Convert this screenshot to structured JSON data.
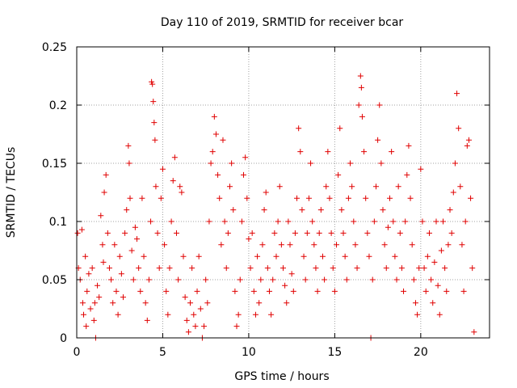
{
  "chart_data": {
    "type": "scatter",
    "title": "Day 110 of 2019, SRMTID for receiver bcar",
    "xlabel": "GPS time / hours",
    "ylabel": "SRMTID / TECUs",
    "xlim": [
      0,
      24
    ],
    "ylim": [
      0,
      0.25
    ],
    "xticks": [
      0,
      5,
      10,
      15,
      20
    ],
    "xtick_labels": [
      "0",
      "5",
      "10",
      "15",
      "20"
    ],
    "yticks": [
      0,
      0.05,
      0.1,
      0.15,
      0.2,
      0.25
    ],
    "ytick_labels": [
      "0",
      "0.05",
      "0.1",
      "0.15",
      "0.2",
      "0.25"
    ],
    "grid": true,
    "marker": "+",
    "color": "#e00000",
    "series": [
      {
        "name": "SRMTID",
        "points": [
          [
            0.05,
            0.09
          ],
          [
            0.1,
            0.06
          ],
          [
            0.2,
            0.05
          ],
          [
            0.3,
            0.093
          ],
          [
            0.35,
            0.03
          ],
          [
            0.4,
            0.02
          ],
          [
            0.5,
            0.07
          ],
          [
            0.55,
            0.01
          ],
          [
            0.6,
            0.04
          ],
          [
            0.7,
            0.055
          ],
          [
            0.8,
            0.025
          ],
          [
            0.9,
            0.06
          ],
          [
            1.0,
            0.015
          ],
          [
            1.05,
            0.03
          ],
          [
            1.1,
            0.0
          ],
          [
            1.2,
            0.045
          ],
          [
            1.3,
            0.035
          ],
          [
            1.4,
            0.105
          ],
          [
            1.5,
            0.08
          ],
          [
            1.55,
            0.065
          ],
          [
            1.6,
            0.125
          ],
          [
            1.7,
            0.14
          ],
          [
            1.8,
            0.09
          ],
          [
            1.9,
            0.06
          ],
          [
            2.0,
            0.05
          ],
          [
            2.1,
            0.03
          ],
          [
            2.2,
            0.08
          ],
          [
            2.3,
            0.04
          ],
          [
            2.4,
            0.02
          ],
          [
            2.5,
            0.07
          ],
          [
            2.6,
            0.055
          ],
          [
            2.7,
            0.035
          ],
          [
            2.8,
            0.09
          ],
          [
            2.9,
            0.11
          ],
          [
            3.0,
            0.165
          ],
          [
            3.05,
            0.15
          ],
          [
            3.1,
            0.12
          ],
          [
            3.2,
            0.075
          ],
          [
            3.3,
            0.05
          ],
          [
            3.4,
            0.095
          ],
          [
            3.5,
            0.085
          ],
          [
            3.6,
            0.06
          ],
          [
            3.7,
            0.04
          ],
          [
            3.8,
            0.12
          ],
          [
            3.9,
            0.07
          ],
          [
            4.0,
            0.03
          ],
          [
            4.1,
            0.015
          ],
          [
            4.2,
            0.05
          ],
          [
            4.3,
            0.1
          ],
          [
            4.35,
            0.22
          ],
          [
            4.4,
            0.218
          ],
          [
            4.45,
            0.203
          ],
          [
            4.5,
            0.185
          ],
          [
            4.55,
            0.17
          ],
          [
            4.6,
            0.13
          ],
          [
            4.7,
            0.09
          ],
          [
            4.8,
            0.06
          ],
          [
            4.9,
            0.12
          ],
          [
            5.0,
            0.145
          ],
          [
            5.1,
            0.08
          ],
          [
            5.2,
            0.04
          ],
          [
            5.3,
            0.02
          ],
          [
            5.4,
            0.06
          ],
          [
            5.5,
            0.1
          ],
          [
            5.6,
            0.135
          ],
          [
            5.7,
            0.155
          ],
          [
            5.8,
            0.09
          ],
          [
            5.9,
            0.05
          ],
          [
            6.0,
            0.13
          ],
          [
            6.1,
            0.125
          ],
          [
            6.2,
            0.07
          ],
          [
            6.3,
            0.035
          ],
          [
            6.4,
            0.015
          ],
          [
            6.5,
            0.005
          ],
          [
            6.6,
            0.03
          ],
          [
            6.7,
            0.06
          ],
          [
            6.8,
            0.02
          ],
          [
            6.9,
            0.01
          ],
          [
            7.0,
            0.04
          ],
          [
            7.1,
            0.07
          ],
          [
            7.2,
            0.025
          ],
          [
            7.3,
            0.0
          ],
          [
            7.4,
            0.01
          ],
          [
            7.5,
            0.05
          ],
          [
            7.6,
            0.03
          ],
          [
            7.7,
            0.1
          ],
          [
            7.8,
            0.15
          ],
          [
            7.9,
            0.16
          ],
          [
            8.0,
            0.19
          ],
          [
            8.1,
            0.175
          ],
          [
            8.2,
            0.14
          ],
          [
            8.3,
            0.12
          ],
          [
            8.4,
            0.08
          ],
          [
            8.5,
            0.17
          ],
          [
            8.6,
            0.1
          ],
          [
            8.7,
            0.06
          ],
          [
            8.8,
            0.09
          ],
          [
            8.9,
            0.13
          ],
          [
            9.0,
            0.15
          ],
          [
            9.1,
            0.11
          ],
          [
            9.2,
            0.04
          ],
          [
            9.3,
            0.01
          ],
          [
            9.4,
            0.02
          ],
          [
            9.5,
            0.05
          ],
          [
            9.6,
            0.1
          ],
          [
            9.7,
            0.14
          ],
          [
            9.8,
            0.155
          ],
          [
            9.9,
            0.12
          ],
          [
            10.0,
            0.085
          ],
          [
            10.1,
            0.06
          ],
          [
            10.2,
            0.09
          ],
          [
            10.3,
            0.04
          ],
          [
            10.4,
            0.02
          ],
          [
            10.5,
            0.07
          ],
          [
            10.6,
            0.03
          ],
          [
            10.7,
            0.05
          ],
          [
            10.8,
            0.08
          ],
          [
            10.9,
            0.11
          ],
          [
            11.0,
            0.125
          ],
          [
            11.1,
            0.06
          ],
          [
            11.2,
            0.04
          ],
          [
            11.3,
            0.02
          ],
          [
            11.4,
            0.05
          ],
          [
            11.5,
            0.09
          ],
          [
            11.6,
            0.07
          ],
          [
            11.7,
            0.1
          ],
          [
            11.8,
            0.13
          ],
          [
            11.9,
            0.08
          ],
          [
            12.0,
            0.06
          ],
          [
            12.1,
            0.045
          ],
          [
            12.2,
            0.03
          ],
          [
            12.3,
            0.1
          ],
          [
            12.4,
            0.08
          ],
          [
            12.5,
            0.055
          ],
          [
            12.6,
            0.04
          ],
          [
            12.7,
            0.09
          ],
          [
            12.8,
            0.12
          ],
          [
            12.9,
            0.18
          ],
          [
            13.0,
            0.16
          ],
          [
            13.1,
            0.11
          ],
          [
            13.2,
            0.07
          ],
          [
            13.3,
            0.05
          ],
          [
            13.4,
            0.09
          ],
          [
            13.5,
            0.12
          ],
          [
            13.6,
            0.15
          ],
          [
            13.7,
            0.1
          ],
          [
            13.8,
            0.08
          ],
          [
            13.9,
            0.06
          ],
          [
            14.0,
            0.04
          ],
          [
            14.1,
            0.09
          ],
          [
            14.2,
            0.11
          ],
          [
            14.3,
            0.07
          ],
          [
            14.4,
            0.05
          ],
          [
            14.5,
            0.13
          ],
          [
            14.6,
            0.16
          ],
          [
            14.7,
            0.12
          ],
          [
            14.8,
            0.09
          ],
          [
            14.9,
            0.06
          ],
          [
            15.0,
            0.04
          ],
          [
            15.1,
            0.08
          ],
          [
            15.2,
            0.14
          ],
          [
            15.3,
            0.18
          ],
          [
            15.4,
            0.11
          ],
          [
            15.5,
            0.09
          ],
          [
            15.6,
            0.07
          ],
          [
            15.7,
            0.05
          ],
          [
            15.8,
            0.12
          ],
          [
            15.9,
            0.15
          ],
          [
            16.0,
            0.13
          ],
          [
            16.1,
            0.1
          ],
          [
            16.2,
            0.08
          ],
          [
            16.3,
            0.06
          ],
          [
            16.4,
            0.2
          ],
          [
            16.5,
            0.225
          ],
          [
            16.55,
            0.215
          ],
          [
            16.6,
            0.19
          ],
          [
            16.7,
            0.16
          ],
          [
            16.8,
            0.12
          ],
          [
            16.9,
            0.09
          ],
          [
            17.0,
            0.07
          ],
          [
            17.1,
            0.0
          ],
          [
            17.2,
            0.05
          ],
          [
            17.3,
            0.1
          ],
          [
            17.4,
            0.13
          ],
          [
            17.5,
            0.17
          ],
          [
            17.6,
            0.2
          ],
          [
            17.7,
            0.15
          ],
          [
            17.8,
            0.11
          ],
          [
            17.9,
            0.08
          ],
          [
            18.0,
            0.06
          ],
          [
            18.1,
            0.095
          ],
          [
            18.2,
            0.12
          ],
          [
            18.3,
            0.16
          ],
          [
            18.4,
            0.1
          ],
          [
            18.5,
            0.07
          ],
          [
            18.6,
            0.05
          ],
          [
            18.7,
            0.13
          ],
          [
            18.8,
            0.09
          ],
          [
            18.9,
            0.06
          ],
          [
            19.0,
            0.04
          ],
          [
            19.1,
            0.1
          ],
          [
            19.2,
            0.14
          ],
          [
            19.3,
            0.165
          ],
          [
            19.4,
            0.12
          ],
          [
            19.5,
            0.08
          ],
          [
            19.6,
            0.05
          ],
          [
            19.7,
            0.03
          ],
          [
            19.8,
            0.02
          ],
          [
            19.9,
            0.06
          ],
          [
            20.0,
            0.145
          ],
          [
            20.1,
            0.1
          ],
          [
            20.2,
            0.06
          ],
          [
            20.3,
            0.04
          ],
          [
            20.4,
            0.07
          ],
          [
            20.5,
            0.09
          ],
          [
            20.6,
            0.05
          ],
          [
            20.7,
            0.03
          ],
          [
            20.8,
            0.065
          ],
          [
            20.9,
            0.1
          ],
          [
            21.0,
            0.045
          ],
          [
            21.1,
            0.02
          ],
          [
            21.2,
            0.075
          ],
          [
            21.3,
            0.1
          ],
          [
            21.4,
            0.06
          ],
          [
            21.5,
            0.04
          ],
          [
            21.6,
            0.08
          ],
          [
            21.7,
            0.11
          ],
          [
            21.8,
            0.09
          ],
          [
            21.9,
            0.125
          ],
          [
            22.0,
            0.15
          ],
          [
            22.1,
            0.21
          ],
          [
            22.2,
            0.18
          ],
          [
            22.3,
            0.13
          ],
          [
            22.4,
            0.08
          ],
          [
            22.5,
            0.04
          ],
          [
            22.6,
            0.1
          ],
          [
            22.7,
            0.165
          ],
          [
            22.8,
            0.17
          ],
          [
            22.9,
            0.12
          ],
          [
            23.0,
            0.06
          ],
          [
            23.1,
            0.005
          ]
        ]
      }
    ]
  }
}
